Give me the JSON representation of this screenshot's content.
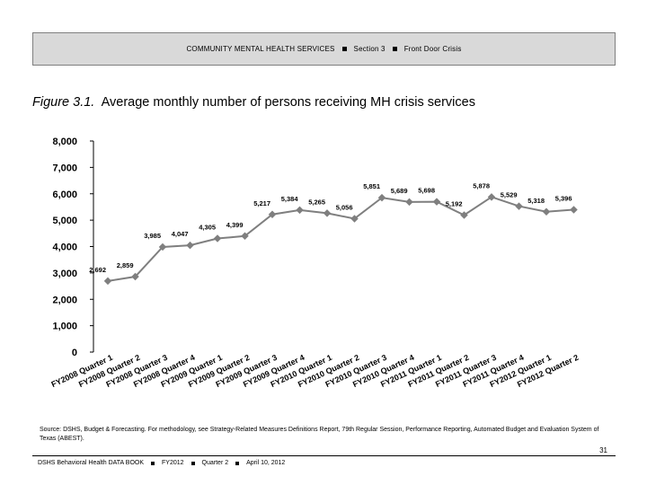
{
  "header": {
    "section_name": "COMMUNITY MENTAL HEALTH SERVICES",
    "section_num": "Section 3",
    "topic": "Front Door Crisis"
  },
  "figure": {
    "number": "Figure 3.1.",
    "title": "Average monthly number of persons receiving MH crisis services"
  },
  "chart_data": {
    "type": "line",
    "title": "",
    "xlabel": "",
    "ylabel": "",
    "ylim": [
      0,
      8000
    ],
    "yticks": [
      "0",
      "1,000",
      "2,000",
      "3,000",
      "4,000",
      "5,000",
      "6,000",
      "7,000",
      "8,000"
    ],
    "grid": false,
    "color": "#7f7f7f",
    "categories": [
      "FY2008 Quarter 1",
      "FY2008 Quarter 2",
      "FY2008 Quarter 3",
      "FY2008 Quarter 4",
      "FY2009 Quarter 1",
      "FY2009 Quarter 2",
      "FY2009 Quarter 3",
      "FY2009 Quarter 4",
      "FY2010 Quarter 1",
      "FY2010 Quarter 2",
      "FY2010 Quarter 3",
      "FY2010 Quarter 4",
      "FY2011 Quarter 1",
      "FY2011 Quarter 2",
      "FY2011 Quarter 3",
      "FY2011 Quarter 4",
      "FY2012 Quarter 1",
      "FY2012 Quarter 2"
    ],
    "values": [
      2692,
      2859,
      3985,
      4047,
      4305,
      4399,
      5217,
      5384,
      5265,
      5056,
      5851,
      5689,
      5698,
      5192,
      5878,
      5529,
      5318,
      5396
    ],
    "labels": [
      "2,692",
      "2,859",
      "3,985",
      "4,047",
      "4,305",
      "4,399",
      "5,217",
      "5,384",
      "5,265",
      "5,056",
      "5,851",
      "5,689",
      "5,698",
      "5,192",
      "5,878",
      "5,529",
      "5,318",
      "5,396"
    ]
  },
  "source_text": "Source: DSHS, Budget & Forecasting. For methodology, see Strategy-Related Measures Definitions Report, 79th Regular Session, Performance Reporting, Automated Budget and Evaluation System of Texas (ABEST).",
  "page_number": "31",
  "footer": {
    "book": "DSHS Behavioral Health DATA BOOK",
    "fiscal_year": "FY2012",
    "quarter": "Quarter 2",
    "date": "April 10, 2012"
  }
}
